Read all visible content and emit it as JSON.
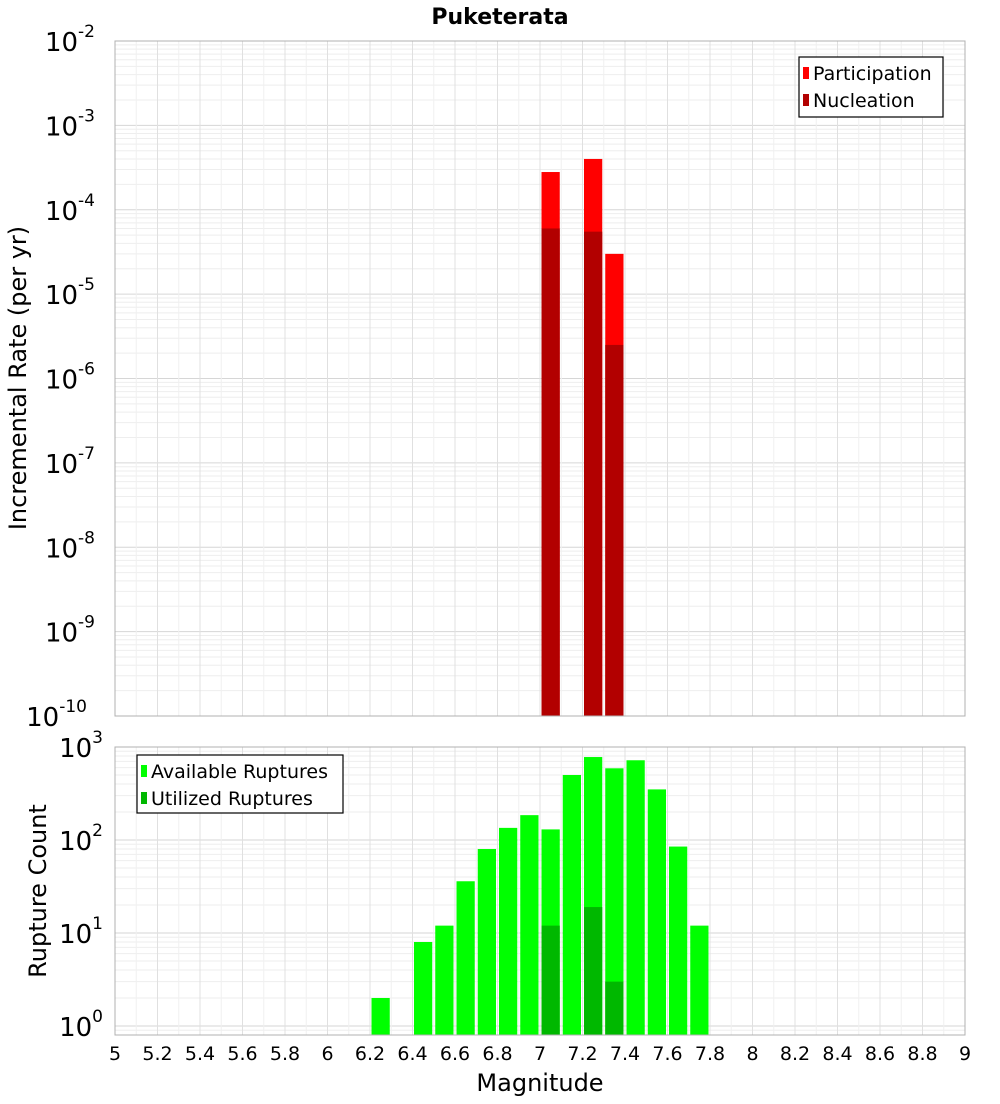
{
  "chart_data": [
    {
      "type": "bar",
      "title": "Puketerata",
      "xlabel": "",
      "ylabel": "Incremental Rate (per yr)",
      "yscale": "log",
      "ylim": [
        1e-10,
        0.01
      ],
      "xlim": [
        5,
        9
      ],
      "y_tick_exponents": [
        "-10",
        "-9",
        "-8",
        "-7",
        "-6",
        "-5",
        "-4",
        "-3",
        "-2"
      ],
      "y_tick_base": "10",
      "grid": true,
      "legend_position": "top-right",
      "bin_width": 0.1,
      "series": [
        {
          "name": "Participation",
          "color": "#ff0000",
          "x": [
            7.05,
            7.25,
            7.35
          ],
          "values": [
            0.00028,
            0.0004,
            3e-05
          ]
        },
        {
          "name": "Nucleation",
          "color": "#b20000",
          "x": [
            7.05,
            7.25,
            7.35
          ],
          "values": [
            6e-05,
            5.5e-05,
            2.5e-06
          ]
        }
      ]
    },
    {
      "type": "bar",
      "title": "",
      "xlabel": "Magnitude",
      "ylabel": "Rupture Count",
      "yscale": "log",
      "ylim": [
        0.8,
        1000
      ],
      "xlim": [
        5,
        9
      ],
      "x_ticks": [
        "5",
        "5.2",
        "5.4",
        "5.6",
        "5.8",
        "6",
        "6.2",
        "6.4",
        "6.6",
        "6.8",
        "7",
        "7.2",
        "7.4",
        "7.6",
        "7.8",
        "8",
        "8.2",
        "8.4",
        "8.6",
        "8.8",
        "9"
      ],
      "y_tick_exponents": [
        "0",
        "1",
        "2",
        "3"
      ],
      "y_tick_base": "10",
      "grid": true,
      "legend_position": "top-left",
      "bin_width": 0.1,
      "series": [
        {
          "name": "Available Ruptures",
          "color": "#00ff00",
          "x": [
            6.25,
            6.45,
            6.55,
            6.65,
            6.75,
            6.85,
            6.95,
            7.05,
            7.15,
            7.25,
            7.35,
            7.45,
            7.55,
            7.65,
            7.75
          ],
          "values": [
            2,
            8,
            12,
            36,
            80,
            135,
            185,
            130,
            500,
            780,
            590,
            720,
            350,
            85,
            12
          ]
        },
        {
          "name": "Utilized Ruptures",
          "color": "#00b800",
          "x": [
            7.05,
            7.25,
            7.35
          ],
          "values": [
            12,
            19,
            3
          ]
        }
      ]
    }
  ]
}
